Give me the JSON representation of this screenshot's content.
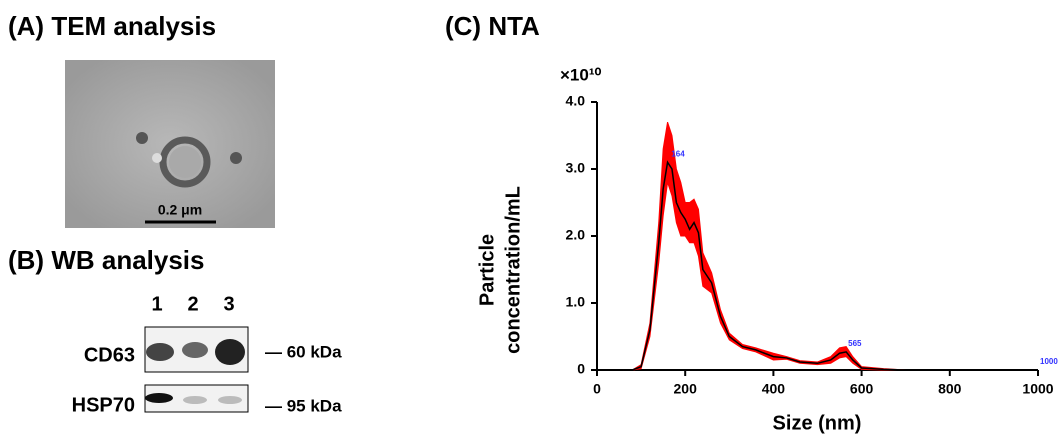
{
  "panels": {
    "a": {
      "title": "(A) TEM analysis",
      "scale_bar": "0.2 μm"
    },
    "b": {
      "title": "(B) WB analysis",
      "lanes": [
        "1",
        "2",
        "3"
      ],
      "rows": [
        {
          "label": "CD63",
          "marker": "— 60 kDa"
        },
        {
          "label": "HSP70",
          "marker": "— 95 kDa"
        }
      ]
    }
  },
  "chart_data": {
    "type": "line",
    "title": "(C) NTA",
    "x_label": "Size (nm)",
    "y_label": [
      "Particle",
      "concentration/mL"
    ],
    "y_multiplier": "×10¹⁰",
    "x": [
      60,
      80,
      100,
      120,
      140,
      150,
      160,
      170,
      180,
      190,
      200,
      210,
      220,
      230,
      240,
      260,
      280,
      300,
      330,
      360,
      400,
      430,
      460,
      500,
      530,
      550,
      565,
      580,
      600,
      650,
      700,
      800,
      900,
      1000
    ],
    "series": [
      {
        "color": "#000000",
        "values": [
          0,
          0,
          0.05,
          0.6,
          1.9,
          2.7,
          3.1,
          3.0,
          2.5,
          2.35,
          2.25,
          2.1,
          2.2,
          2.05,
          1.5,
          1.3,
          0.8,
          0.5,
          0.35,
          0.3,
          0.2,
          0.18,
          0.12,
          0.1,
          0.15,
          0.25,
          0.27,
          0.15,
          0.03,
          0.01,
          0,
          0,
          0,
          0
        ]
      }
    ],
    "band": {
      "color": "#ff0000",
      "upper": [
        0,
        0,
        0.08,
        0.7,
        2.2,
        3.3,
        3.7,
        3.5,
        3.0,
        2.8,
        2.5,
        2.5,
        2.55,
        2.4,
        1.75,
        1.45,
        0.9,
        0.55,
        0.38,
        0.33,
        0.25,
        0.2,
        0.14,
        0.12,
        0.2,
        0.33,
        0.35,
        0.2,
        0.05,
        0.02,
        0,
        0,
        0,
        0
      ],
      "lower": [
        0,
        0,
        0.02,
        0.5,
        1.6,
        2.3,
        2.8,
        2.6,
        2.2,
        2.0,
        2.0,
        1.9,
        1.9,
        1.7,
        1.25,
        1.15,
        0.7,
        0.45,
        0.32,
        0.27,
        0.15,
        0.16,
        0.1,
        0.08,
        0.1,
        0.18,
        0.2,
        0.1,
        0.01,
        0,
        0,
        0,
        0,
        0
      ]
    },
    "annotations": [
      {
        "x": 164,
        "y": 3.1,
        "text": "164"
      },
      {
        "x": 565,
        "y": 0.27,
        "text": "565"
      },
      {
        "x": 1000,
        "y": 0,
        "text": "1000"
      }
    ],
    "annotation_color": "#3333ff",
    "xlim": [
      0,
      1000
    ],
    "xticks": [
      0,
      200,
      400,
      600,
      800,
      1000
    ],
    "ylim": [
      0,
      4
    ],
    "yticks": [
      0,
      {
        "value": 1,
        "label": "1.0"
      },
      {
        "value": 2,
        "label": "2.0"
      },
      {
        "value": 3,
        "label": "3.0"
      },
      {
        "value": 4,
        "label": "4.0"
      }
    ]
  }
}
